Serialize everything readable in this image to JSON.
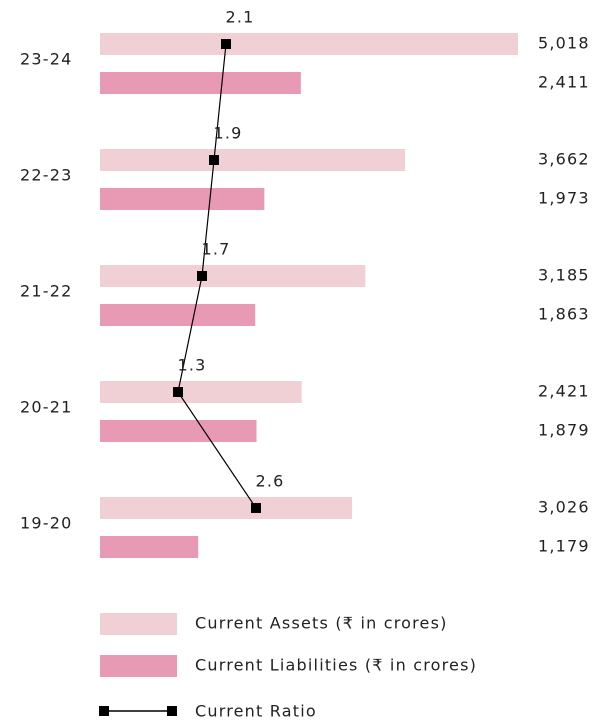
{
  "chart_data": {
    "type": "bar",
    "categories": [
      "23-24",
      "22-23",
      "21-22",
      "20-21",
      "19-20"
    ],
    "series": [
      {
        "name": "Current Assets (₹ in crores)",
        "color": "#f0d0d5",
        "values": [
          5018,
          3662,
          3185,
          2421,
          3026
        ],
        "value_labels": [
          "5,018",
          "3,662",
          "3,185",
          "2,421",
          "3,026"
        ]
      },
      {
        "name": "Current Liabilities (₹ in crores)",
        "color": "#e899b4",
        "values": [
          2411,
          1973,
          1863,
          1879,
          1179
        ],
        "value_labels": [
          "2,411",
          "1,973",
          "1,863",
          "1,879",
          "1,179"
        ]
      },
      {
        "name": "Current Ratio",
        "type": "line",
        "color": "#000000",
        "values": [
          2.1,
          1.9,
          1.7,
          1.3,
          2.6
        ]
      }
    ]
  }
}
